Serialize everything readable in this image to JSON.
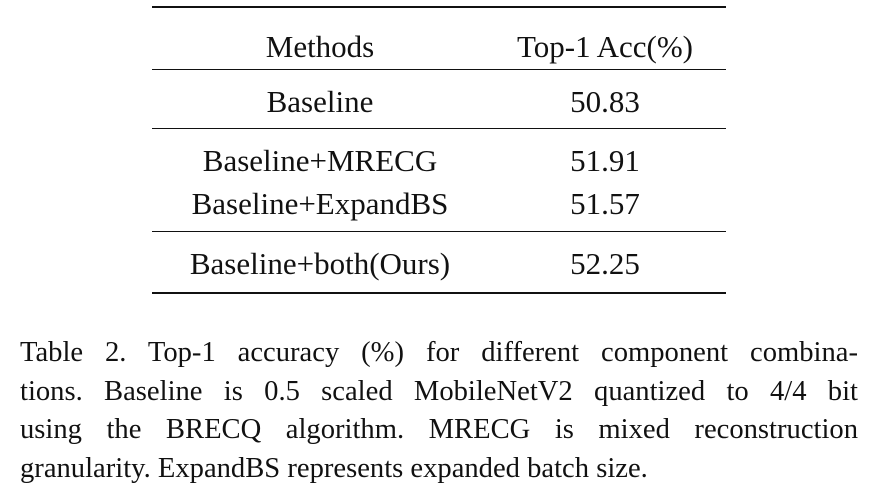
{
  "table": {
    "header": {
      "methods": "Methods",
      "accuracy": "Top-1 Acc(%)"
    },
    "rows": [
      {
        "method": "Baseline",
        "accuracy": "50.83"
      },
      {
        "method": "Baseline+MRECG",
        "accuracy": "51.91"
      },
      {
        "method": "Baseline+ExpandBS",
        "accuracy": "51.57"
      },
      {
        "method": "Baseline+both(Ours)",
        "accuracy": "52.25"
      }
    ]
  },
  "caption": {
    "lines": [
      "Table 2.  Top-1 accuracy (%) for different component combina-",
      "tions.  Baseline is 0.5 scaled MobileNetV2 quantized to 4/4 bit",
      "using the BRECQ algorithm.  MRECG is mixed reconstruction",
      "granularity. ExpandBS represents expanded batch size."
    ]
  },
  "chart_data": {
    "type": "table",
    "columns": [
      "Methods",
      "Top-1 Acc(%)"
    ],
    "rows": [
      [
        "Baseline",
        50.83
      ],
      [
        "Baseline+MRECG",
        51.91
      ],
      [
        "Baseline+ExpandBS",
        51.57
      ],
      [
        "Baseline+both(Ours)",
        52.25
      ]
    ]
  }
}
